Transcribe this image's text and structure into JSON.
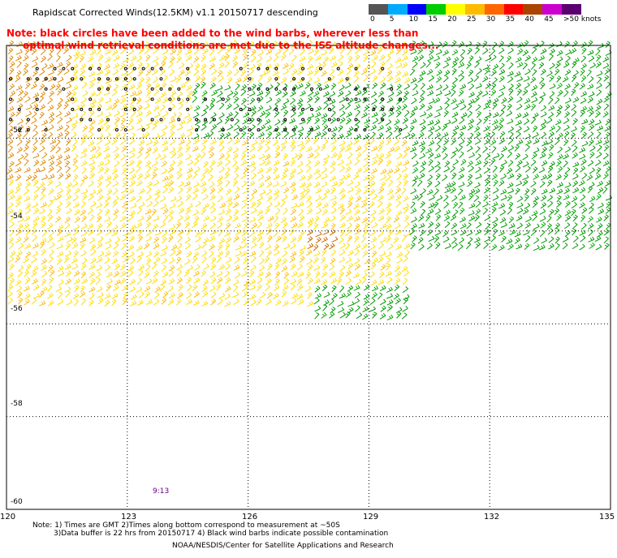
{
  "title": "Rapidscat Corrected Winds(12.5KM) v1.1 20150717 descending",
  "note_line_1": "Note: black circles have been added to the wind barbs, wherever less than",
  "note_line_2": "optimal wind retrieval conditions are met due to the ISS altitude changes...",
  "legend": {
    "labels": [
      "0",
      "5",
      "10",
      "15",
      "20",
      "25",
      "30",
      "35",
      "40",
      "45",
      ">50 knots"
    ],
    "colors": [
      "#555555",
      "#00aaff",
      "#0000ff",
      "#00cc00",
      "#ffff00",
      "#ffbb00",
      "#ff6600",
      "#ff0000",
      "#aa4400",
      "#cc00cc",
      "#5a0070"
    ]
  },
  "axes": {
    "lat_labels": [
      "-52",
      "-54",
      "-56",
      "-58",
      "-60"
    ],
    "lon_labels": [
      "120",
      "123",
      "126",
      "129",
      "132",
      "135"
    ]
  },
  "time_label": "9:13",
  "footer": {
    "line_1": "Note: 1) Times are GMT 2)Times along bottom correspond to measurement at ~50S",
    "line_2": "3)Data buffer is 22 hrs from 20150717 4) Black wind barbs indicate possible contamination",
    "line_3": "NOAA/NESDIS/Center for Satellite Applications and Research"
  },
  "chart_data": {
    "type": "wind_barb_map",
    "title": "Rapidscat Corrected Winds(12.5KM) v1.1 20150717 descending",
    "x_range": [
      120,
      135
    ],
    "y_range": [
      -60,
      -50
    ],
    "x_ticks": [
      120,
      123,
      126,
      129,
      132,
      135
    ],
    "y_ticks": [
      -52,
      -54,
      -56,
      -58,
      -60
    ],
    "grid": true,
    "speed_bins_knots": [
      0,
      5,
      10,
      15,
      20,
      25,
      30,
      35,
      40,
      45,
      50
    ],
    "regions": [
      {
        "lon": [
          120,
          130
        ],
        "lat": [
          -55.7,
          -50
        ],
        "dominant_speed": "20-25 knots",
        "color": "#ffdd00"
      },
      {
        "lon": [
          120,
          121.5
        ],
        "lat": [
          -53,
          -50
        ],
        "dominant_speed": "30 knots",
        "color": "#e08a00"
      },
      {
        "lon": [
          124.5,
          130
        ],
        "lat": [
          -52,
          -50.8
        ],
        "dominant_speed": "15 knots",
        "color": "#009900"
      },
      {
        "lon": [
          130,
          135
        ],
        "lat": [
          -54.5,
          -50
        ],
        "dominant_speed": "15 knots",
        "color": "#009900"
      },
      {
        "lon": [
          127.5,
          130
        ],
        "lat": [
          -56,
          -55.2
        ],
        "dominant_speed": "15 knots",
        "color": "#009900"
      },
      {
        "lon": [
          127.3,
          128.2
        ],
        "lat": [
          -54.5,
          -54
        ],
        "dominant_speed": "25-30 knots",
        "color": "#cc6600"
      }
    ]
  }
}
